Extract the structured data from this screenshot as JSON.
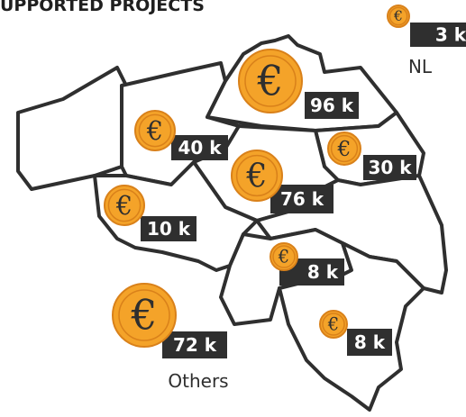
{
  "title": "UPPORTED PROJECTS",
  "currency_symbol": "€",
  "markers": [
    {
      "value_label": "3 k",
      "caption": "NL"
    },
    {
      "value_label": "96 k"
    },
    {
      "value_label": "40 k"
    },
    {
      "value_label": "30 k"
    },
    {
      "value_label": "76 k"
    },
    {
      "value_label": "10 k"
    },
    {
      "value_label": "8 k"
    },
    {
      "value_label": "8 k"
    },
    {
      "value_label": "72 k",
      "caption": "Others"
    }
  ]
}
